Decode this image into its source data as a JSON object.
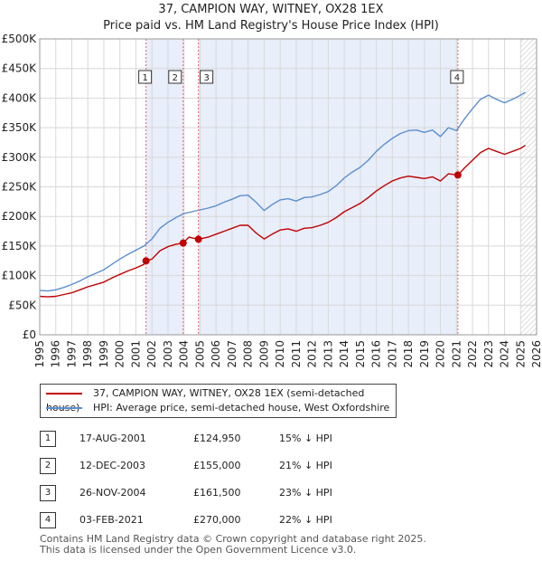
{
  "title_line1": "37, CAMPION WAY, WITNEY, OX28 1EX",
  "title_line2": "Price paid vs. HM Land Registry's House Price Index (HPI)",
  "chart_data": {
    "type": "line",
    "xlim": [
      1995,
      2026
    ],
    "ylim": [
      0,
      500000
    ],
    "x_ticks": [
      "1995",
      "1996",
      "1997",
      "1998",
      "1999",
      "2000",
      "2001",
      "2002",
      "2003",
      "2004",
      "2005",
      "2006",
      "2007",
      "2008",
      "2009",
      "2010",
      "2011",
      "2012",
      "2013",
      "2014",
      "2015",
      "2016",
      "2017",
      "2018",
      "2019",
      "2020",
      "2021",
      "2022",
      "2023",
      "2024",
      "2025",
      "2026"
    ],
    "y_ticks": [
      {
        "value": 0,
        "label": "£0"
      },
      {
        "value": 50000,
        "label": "£50K"
      },
      {
        "value": 100000,
        "label": "£100K"
      },
      {
        "value": 150000,
        "label": "£150K"
      },
      {
        "value": 200000,
        "label": "£200K"
      },
      {
        "value": 250000,
        "label": "£250K"
      },
      {
        "value": 300000,
        "label": "£300K"
      },
      {
        "value": 350000,
        "label": "£350K"
      },
      {
        "value": 400000,
        "label": "£400K"
      },
      {
        "value": 450000,
        "label": "£450K"
      },
      {
        "value": 500000,
        "label": "£500K"
      }
    ],
    "grid": true,
    "shaded_ranges": [
      [
        2001.63,
        2003.95
      ],
      [
        2004.9,
        2021.09
      ]
    ],
    "hatched_after": 2025.0,
    "series": [
      {
        "name": "HPI: Average price, semi-detached house, West Oxfordshire",
        "color": "#5b8fcf",
        "x": [
          1995.0,
          1995.5,
          1996.0,
          1996.5,
          1997.0,
          1997.5,
          1998.0,
          1998.5,
          1999.0,
          1999.5,
          2000.0,
          2000.5,
          2001.0,
          2001.5,
          2002.0,
          2002.5,
          2003.0,
          2003.5,
          2004.0,
          2004.5,
          2005.0,
          2005.5,
          2006.0,
          2006.5,
          2007.0,
          2007.5,
          2008.0,
          2008.5,
          2009.0,
          2009.5,
          2010.0,
          2010.5,
          2011.0,
          2011.5,
          2012.0,
          2012.5,
          2013.0,
          2013.5,
          2014.0,
          2014.5,
          2015.0,
          2015.5,
          2016.0,
          2016.5,
          2017.0,
          2017.5,
          2018.0,
          2018.5,
          2019.0,
          2019.5,
          2020.0,
          2020.5,
          2021.0,
          2021.5,
          2022.0,
          2022.5,
          2023.0,
          2023.5,
          2024.0,
          2024.5,
          2025.0,
          2025.3
        ],
        "values": [
          75000,
          74000,
          76000,
          80000,
          85000,
          91000,
          98000,
          104000,
          110000,
          119000,
          128000,
          136000,
          143000,
          150000,
          162000,
          180000,
          190000,
          198000,
          205000,
          208000,
          211000,
          214000,
          218000,
          224000,
          229000,
          235000,
          236000,
          224000,
          210000,
          220000,
          228000,
          230000,
          226000,
          232000,
          233000,
          237000,
          242000,
          252000,
          265000,
          275000,
          283000,
          295000,
          310000,
          322000,
          332000,
          340000,
          345000,
          346000,
          342000,
          346000,
          335000,
          350000,
          345000,
          365000,
          382000,
          398000,
          405000,
          398000,
          392000,
          398000,
          405000,
          410000
        ]
      },
      {
        "name": "37, CAMPION WAY, WITNEY, OX28 1EX (semi-detached house)",
        "color": "#c00000",
        "x": [
          1995.0,
          1995.5,
          1996.0,
          1996.5,
          1997.0,
          1997.5,
          1998.0,
          1998.5,
          1999.0,
          1999.5,
          2000.0,
          2000.5,
          2001.0,
          2001.5,
          2001.63,
          2002.0,
          2002.5,
          2003.0,
          2003.5,
          2003.95,
          2004.3,
          2004.9,
          2005.5,
          2006.0,
          2006.5,
          2007.0,
          2007.5,
          2008.0,
          2008.5,
          2009.0,
          2009.5,
          2010.0,
          2010.5,
          2011.0,
          2011.5,
          2012.0,
          2012.5,
          2013.0,
          2013.5,
          2014.0,
          2014.5,
          2015.0,
          2015.5,
          2016.0,
          2016.5,
          2017.0,
          2017.5,
          2018.0,
          2018.5,
          2019.0,
          2019.5,
          2020.0,
          2020.5,
          2021.09,
          2021.5,
          2022.0,
          2022.5,
          2023.0,
          2023.5,
          2024.0,
          2024.5,
          2025.0,
          2025.3
        ],
        "values": [
          65000,
          64000,
          65000,
          68000,
          71000,
          76000,
          81000,
          85000,
          89000,
          96000,
          102000,
          108000,
          113000,
          119000,
          124950,
          128000,
          142000,
          149000,
          153000,
          155000,
          165000,
          161500,
          165000,
          170000,
          175000,
          180000,
          185000,
          185000,
          172000,
          162000,
          170000,
          177000,
          179000,
          175000,
          180000,
          181000,
          185000,
          190000,
          198000,
          208000,
          215000,
          222000,
          232000,
          243000,
          252000,
          260000,
          265000,
          268000,
          266000,
          264000,
          267000,
          260000,
          272000,
          270000,
          282000,
          295000,
          308000,
          315000,
          310000,
          305000,
          310000,
          315000,
          320000
        ]
      }
    ],
    "annotations": [
      {
        "label": "1",
        "x": 2001.63,
        "value": 124950
      },
      {
        "label": "2",
        "x": 2003.95,
        "value": 155000
      },
      {
        "label": "3",
        "x": 2004.9,
        "value": 161500
      },
      {
        "label": "4",
        "x": 2021.09,
        "value": 270000
      }
    ]
  },
  "legend": {
    "items": [
      {
        "label": "37, CAMPION WAY, WITNEY, OX28 1EX (semi-detached house)",
        "color": "#c00000"
      },
      {
        "label": "HPI: Average price, semi-detached house, West Oxfordshire",
        "color": "#5b8fcf"
      }
    ]
  },
  "transactions": [
    {
      "num": "1",
      "date": "17-AUG-2001",
      "price": "£124,950",
      "diff": "15% ↓ HPI"
    },
    {
      "num": "2",
      "date": "12-DEC-2003",
      "price": "£155,000",
      "diff": "21% ↓ HPI"
    },
    {
      "num": "3",
      "date": "26-NOV-2004",
      "price": "£161,500",
      "diff": "23% ↓ HPI"
    },
    {
      "num": "4",
      "date": "03-FEB-2021",
      "price": "£270,000",
      "diff": "22% ↓ HPI"
    }
  ],
  "footer_line1": "Contains HM Land Registry data © Crown copyright and database right 2025.",
  "footer_line2": "This data is licensed under the Open Government Licence v3.0."
}
